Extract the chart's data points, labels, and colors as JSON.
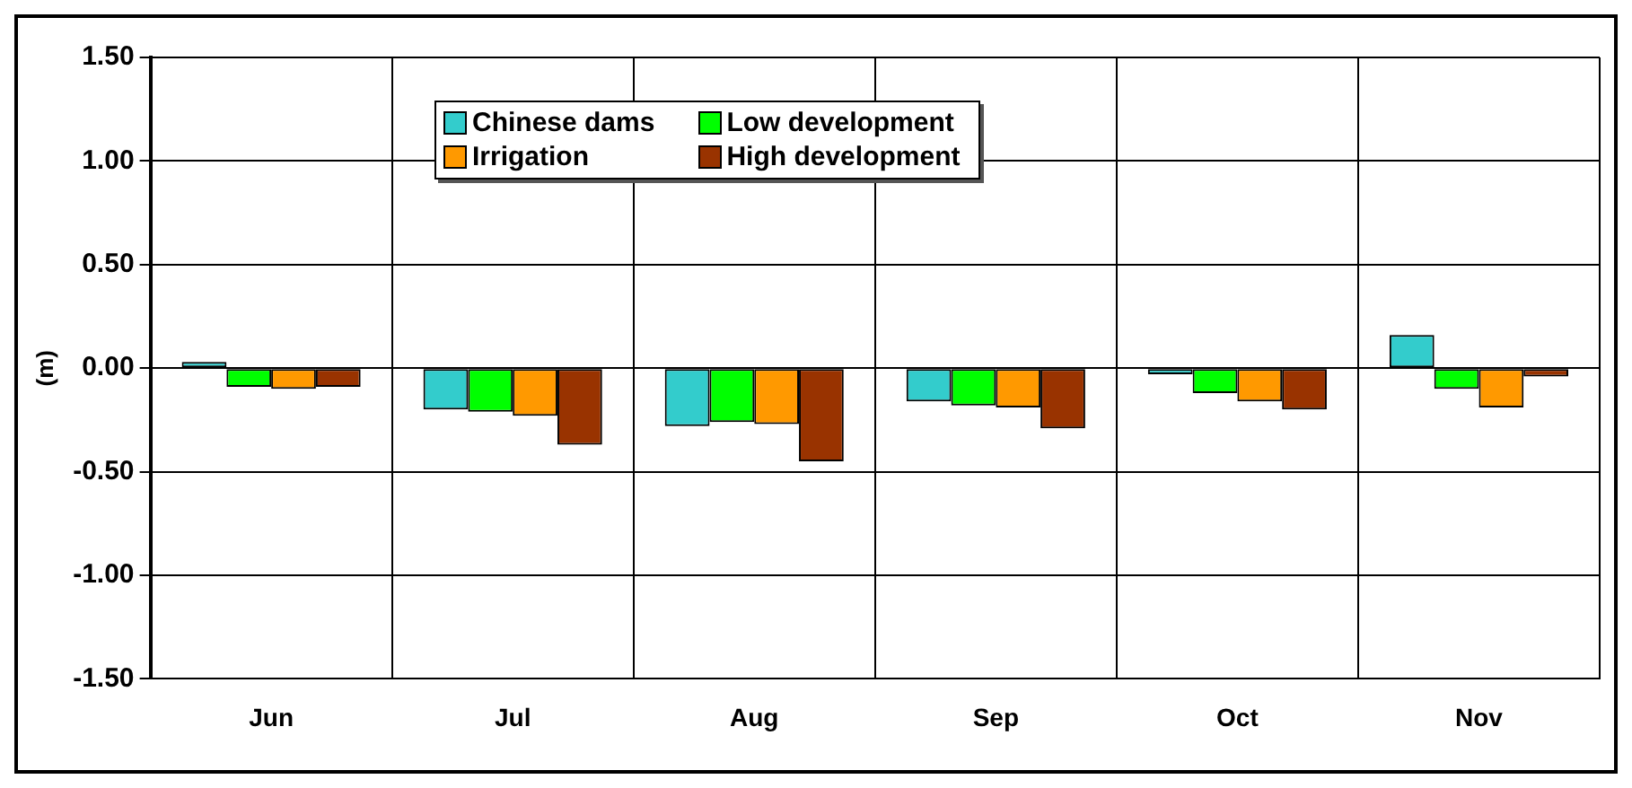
{
  "chart_data": {
    "type": "bar",
    "ylabel": "(m)",
    "categories": [
      "Jun",
      "Jul",
      "Aug",
      "Sep",
      "Oct",
      "Nov"
    ],
    "series": [
      {
        "name": "Chinese dams",
        "color": "#33cccc",
        "values": [
          0.03,
          -0.2,
          -0.28,
          -0.16,
          -0.03,
          0.16
        ]
      },
      {
        "name": "Low development",
        "color": "#00ff00",
        "values": [
          -0.09,
          -0.21,
          -0.26,
          -0.18,
          -0.12,
          -0.1
        ]
      },
      {
        "name": "Irrigation",
        "color": "#ff9900",
        "values": [
          -0.1,
          -0.23,
          -0.27,
          -0.19,
          -0.16,
          -0.19
        ]
      },
      {
        "name": "High development",
        "color": "#993300",
        "values": [
          -0.09,
          -0.37,
          -0.45,
          -0.29,
          -0.2,
          -0.04
        ]
      }
    ],
    "ylim": [
      -1.5,
      1.5
    ],
    "yticks": [
      {
        "value": -1.5,
        "label": "-1.50"
      },
      {
        "value": -1,
        "label": "-1.00"
      },
      {
        "value": -0.5,
        "label": "-0.50"
      },
      {
        "value": 0,
        "label": "0.00"
      },
      {
        "value": 0.5,
        "label": "0.50"
      },
      {
        "value": 1,
        "label": "1.00"
      },
      {
        "value": 1.5,
        "label": "1.50"
      }
    ],
    "grid": true,
    "legend": "top"
  }
}
